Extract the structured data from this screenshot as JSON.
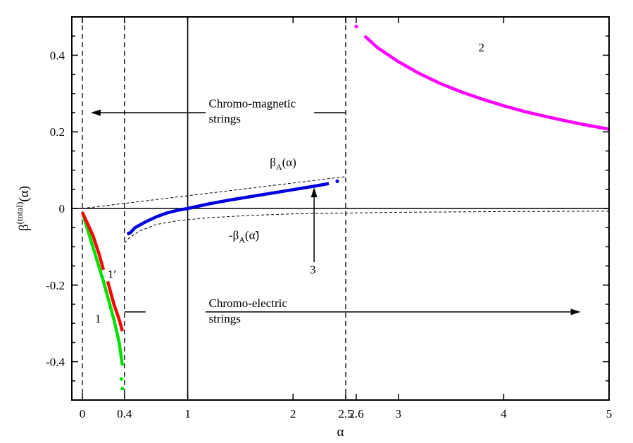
{
  "chart_data": {
    "type": "line",
    "xlabel": "α",
    "ylabel": {
      "base": "β",
      "sup": "(total)",
      "arg": "(α)"
    },
    "xlim": [
      -0.1,
      5
    ],
    "ylim": [
      -0.5,
      0.5
    ],
    "x_ticks": [
      {
        "v": 0,
        "label": "0"
      },
      {
        "v": 0.4,
        "label": "0.4"
      },
      {
        "v": 1,
        "label": "1"
      },
      {
        "v": 2,
        "label": "2"
      },
      {
        "v": 2.5,
        "label": "2.5"
      },
      {
        "v": 2.6,
        "label": "2.6"
      },
      {
        "v": 3,
        "label": "3"
      },
      {
        "v": 4,
        "label": "4"
      },
      {
        "v": 5,
        "label": "5"
      }
    ],
    "y_ticks": [
      {
        "v": 0.4,
        "label": "0.4"
      },
      {
        "v": 0.2,
        "label": "0.2"
      },
      {
        "v": 0,
        "label": "0"
      },
      {
        "v": -0.2,
        "label": "-0.2"
      },
      {
        "v": -0.4,
        "label": "-0.4"
      }
    ],
    "vlines_dashed": [
      0,
      0.4,
      2.5
    ],
    "vline_solid": 1,
    "hline_solid": 0,
    "series": [
      {
        "color": "#00e000",
        "style": "thick",
        "points": [
          [
            0,
            -0.01
          ],
          [
            0.1,
            -0.1
          ],
          [
            0.2,
            -0.19
          ],
          [
            0.3,
            -0.29
          ],
          [
            0.35,
            -0.35
          ],
          [
            0.38,
            -0.41
          ]
        ]
      },
      {
        "color": "#00e000",
        "style": "dots",
        "points": [
          [
            0.37,
            -0.445
          ],
          [
            0.38,
            -0.47
          ]
        ]
      },
      {
        "color": "#ff0000",
        "style": "thick",
        "points": [
          [
            0,
            -0.01
          ],
          [
            0.05,
            -0.04
          ],
          [
            0.1,
            -0.07
          ],
          [
            0.16,
            -0.12
          ],
          [
            0.2,
            -0.16
          ]
        ]
      },
      {
        "color": "#ff0000",
        "style": "thick",
        "points": [
          [
            0.24,
            -0.19
          ],
          [
            0.3,
            -0.25
          ],
          [
            0.35,
            -0.29
          ],
          [
            0.38,
            -0.32
          ]
        ]
      },
      {
        "color": "#0000e0",
        "style": "thick",
        "points": [
          [
            0.45,
            -0.065
          ],
          [
            0.5,
            -0.05
          ],
          [
            0.6,
            -0.035
          ],
          [
            0.7,
            -0.022
          ],
          [
            0.8,
            -0.012
          ],
          [
            0.9,
            -0.005
          ],
          [
            1.0,
            0.0
          ],
          [
            1.2,
            0.012
          ],
          [
            1.4,
            0.022
          ],
          [
            1.6,
            0.031
          ],
          [
            1.8,
            0.04
          ],
          [
            2.0,
            0.049
          ],
          [
            2.2,
            0.058
          ],
          [
            2.34,
            0.065
          ]
        ]
      },
      {
        "color": "#0000e0",
        "style": "dots",
        "points": [
          [
            0.44,
            -0.065
          ],
          [
            2.42,
            0.071
          ]
        ]
      },
      {
        "color": "#ff00ff",
        "style": "thick",
        "points": [
          [
            2.68,
            0.45
          ],
          [
            2.8,
            0.42
          ],
          [
            3.0,
            0.383
          ],
          [
            3.2,
            0.352
          ],
          [
            3.4,
            0.326
          ],
          [
            3.6,
            0.304
          ],
          [
            3.8,
            0.285
          ],
          [
            4.0,
            0.268
          ],
          [
            4.2,
            0.253
          ],
          [
            4.4,
            0.24
          ],
          [
            4.6,
            0.228
          ],
          [
            4.8,
            0.217
          ],
          [
            5.0,
            0.207
          ]
        ]
      },
      {
        "color": "#ff00ff",
        "style": "dots",
        "points": [
          [
            2.6,
            0.475
          ]
        ]
      },
      {
        "color": "#000000",
        "style": "dashed",
        "points": [
          [
            0,
            0
          ],
          [
            2.5,
            0.083
          ]
        ]
      },
      {
        "color": "#000000",
        "style": "dashed",
        "points": [
          [
            0.4,
            -0.09
          ],
          [
            0.45,
            -0.075
          ],
          [
            0.55,
            -0.058
          ],
          [
            0.7,
            -0.042
          ],
          [
            0.9,
            -0.032
          ],
          [
            1.2,
            -0.024
          ],
          [
            1.6,
            -0.018
          ],
          [
            2.0,
            -0.014
          ],
          [
            3.0,
            -0.01
          ],
          [
            4.0,
            -0.008
          ],
          [
            5.0,
            -0.007
          ]
        ]
      }
    ],
    "arrows": [
      {
        "from": [
          1.17,
          0.25
        ],
        "to": [
          0.08,
          0.25
        ]
      },
      {
        "from": [
          1.17,
          -0.27
        ],
        "to": [
          4.73,
          -0.27
        ]
      },
      {
        "from": [
          2.2,
          -0.14
        ],
        "to": [
          2.2,
          0.055
        ]
      }
    ],
    "segments": [
      {
        "from": [
          2.2,
          0.25
        ],
        "to": [
          2.5,
          0.25
        ]
      },
      {
        "from": [
          0.4,
          -0.27
        ],
        "to": [
          0.6,
          -0.27
        ]
      }
    ],
    "annotations": [
      {
        "id": "magnetic-line1",
        "text": "Chromo-magnetic",
        "at": [
          1.2,
          0.264
        ]
      },
      {
        "id": "magnetic-line2",
        "text": "strings",
        "at": [
          1.2,
          0.224
        ]
      },
      {
        "id": "electric-line1",
        "text": "Chromo-electric",
        "at": [
          1.2,
          -0.257
        ]
      },
      {
        "id": "electric-line2",
        "text": "strings",
        "at": [
          1.2,
          -0.298
        ]
      },
      {
        "id": "label-1",
        "text": "1",
        "at": [
          0.12,
          -0.298
        ]
      },
      {
        "id": "label-1prime",
        "text": "1′",
        "at": [
          0.24,
          -0.182
        ]
      },
      {
        "id": "label-2",
        "text": "2",
        "at": [
          3.76,
          0.41
        ]
      },
      {
        "id": "label-3",
        "text": "3",
        "at": [
          2.16,
          -0.17
        ]
      }
    ],
    "beta_labels": [
      {
        "id": "betaA",
        "base": "β",
        "sub": "A",
        "arg": "(α)",
        "prefix": "",
        "at": [
          1.78,
          0.11
        ]
      },
      {
        "id": "neg-betaA",
        "base": "β",
        "sub": "A",
        "arg": "(α̃)",
        "prefix": "-",
        "at": [
          1.39,
          -0.08
        ]
      }
    ]
  }
}
